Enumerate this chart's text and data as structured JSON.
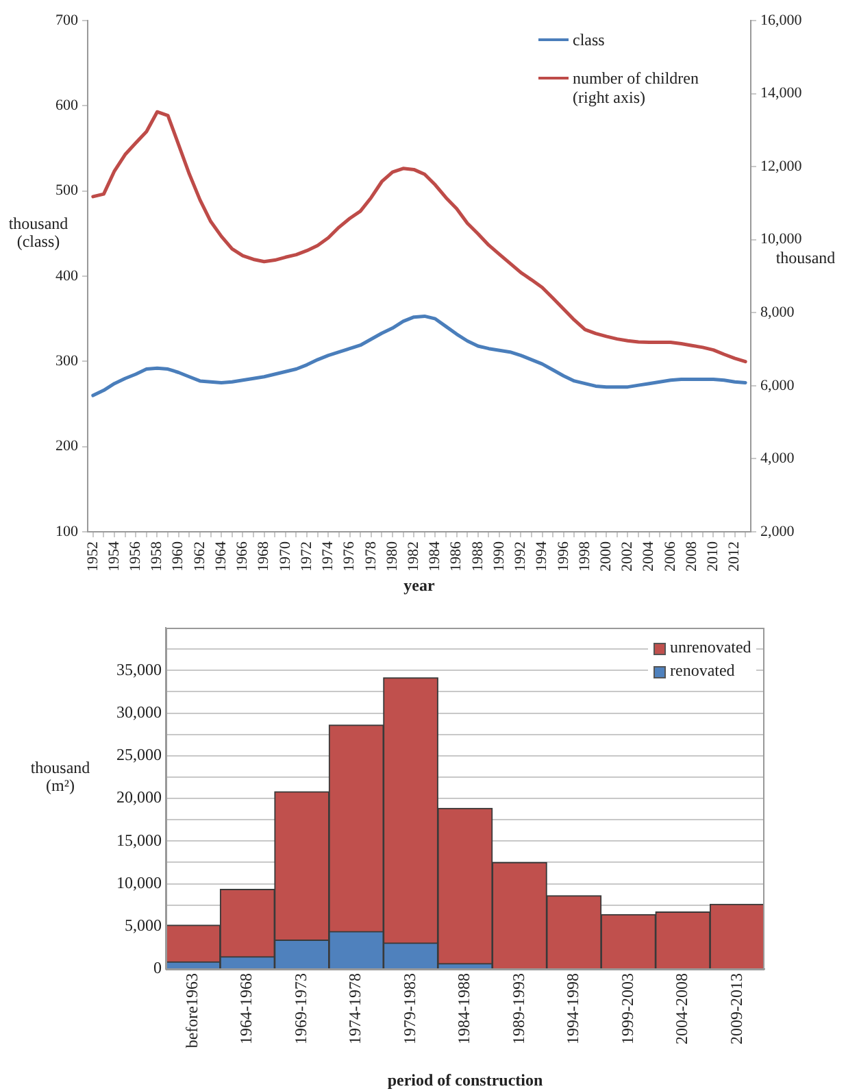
{
  "chart_data": [
    {
      "type": "line",
      "xlabel": "year",
      "ylabel": "thousand (class)",
      "y2label": "thousand",
      "categories": [
        "1952",
        null,
        "1954",
        null,
        "1956",
        null,
        "1958",
        null,
        "1960",
        null,
        "1962",
        null,
        "1964",
        null,
        "1966",
        null,
        "1968",
        null,
        "1970",
        null,
        "1972",
        null,
        "1974",
        null,
        "1976",
        null,
        "1978",
        null,
        "1980",
        null,
        "1982",
        null,
        "1984",
        null,
        "1986",
        null,
        "1988",
        null,
        "1990",
        null,
        "1992",
        null,
        "1994",
        null,
        "1996",
        null,
        "1998",
        null,
        "2000",
        null,
        "2002",
        null,
        "2004",
        null,
        "2006",
        null,
        "2008",
        null,
        "2010",
        null,
        "2012",
        null
      ],
      "series": [
        {
          "name": "class",
          "color": "#4a7ebb",
          "axis": "y",
          "values": [
            260,
            266,
            274,
            280,
            285,
            291,
            292,
            291,
            287,
            282,
            277,
            276,
            275,
            276,
            278,
            280,
            282,
            285,
            288,
            291,
            296,
            302,
            307,
            311,
            315,
            319,
            326,
            333,
            339,
            347,
            352,
            353,
            350,
            341,
            332,
            324,
            318,
            315,
            313,
            311,
            307,
            302,
            297,
            290,
            283,
            277,
            274,
            271,
            270,
            270,
            270,
            272,
            274,
            276,
            278,
            279,
            279,
            279,
            279,
            278,
            276,
            275
          ]
        },
        {
          "name": "number of children (right axis)",
          "color": "#be4b48",
          "axis": "y2",
          "values": [
            11180,
            11250,
            11880,
            12330,
            12650,
            12960,
            13500,
            13400,
            12600,
            11800,
            11090,
            10500,
            10090,
            9750,
            9560,
            9460,
            9400,
            9440,
            9520,
            9590,
            9700,
            9840,
            10050,
            10340,
            10580,
            10780,
            11150,
            11590,
            11850,
            11950,
            11920,
            11790,
            11500,
            11150,
            10850,
            10450,
            10160,
            9850,
            9600,
            9350,
            9100,
            8900,
            8690,
            8400,
            8100,
            7800,
            7540,
            7430,
            7350,
            7280,
            7230,
            7200,
            7190,
            7190,
            7190,
            7150,
            7100,
            7050,
            6980,
            6860,
            6750,
            6660
          ]
        }
      ],
      "ylim": [
        100,
        700
      ],
      "yticks": [
        100,
        200,
        300,
        400,
        500,
        600,
        700
      ],
      "y2lim": [
        2000,
        16000
      ],
      "y2ticks": [
        {
          "value": 2000,
          "label": "2,000"
        },
        {
          "value": 4000,
          "label": "4,000"
        },
        {
          "value": 6000,
          "label": "6,000"
        },
        {
          "value": 8000,
          "label": "8,000"
        },
        {
          "value": 10000,
          "label": "10,000"
        },
        {
          "value": 12000,
          "label": "12,000"
        },
        {
          "value": 14000,
          "label": "14,000"
        },
        {
          "value": 16000,
          "label": "16,000"
        }
      ],
      "grid": false,
      "legend": "top right",
      "marker": "none",
      "line_style": "solid"
    },
    {
      "type": "bar",
      "stacked": true,
      "xlabel": "period of construction",
      "ylabel": "thousand (m²)",
      "categories": [
        "before1963",
        "1964-1968",
        "1969-1973",
        "1974-1978",
        "1979-1983",
        "1984-1988",
        "1989-1993",
        "1994-1998",
        "1999-2003",
        "2004-2008",
        "2009-2013"
      ],
      "series": [
        {
          "name": "renovated",
          "color": "#4f81bd",
          "values": [
            850,
            1450,
            3400,
            4400,
            3050,
            650,
            0,
            0,
            0,
            0,
            0
          ]
        },
        {
          "name": "unrenovated",
          "color": "#c0504d",
          "values": [
            4300,
            7900,
            17400,
            24200,
            31100,
            18200,
            12500,
            8600,
            6400,
            6700,
            7600
          ]
        }
      ],
      "ylim": [
        0,
        40000
      ],
      "yticks": [
        0,
        {
          "value": 5000,
          "label": "5,000"
        },
        {
          "value": 7500,
          "label": null
        },
        {
          "value": 10000,
          "label": "10,000"
        },
        {
          "value": 12500,
          "label": null
        },
        {
          "value": 15000,
          "label": "15,000"
        },
        {
          "value": 17500,
          "label": null
        },
        {
          "value": 20000,
          "label": "20,000"
        },
        {
          "value": 22500,
          "label": null
        },
        {
          "value": 25000,
          "label": "25,000"
        },
        {
          "value": 27500,
          "label": null
        },
        {
          "value": 30000,
          "label": "30,000"
        },
        {
          "value": 32500,
          "label": null
        },
        {
          "value": 35000,
          "label": "35,000"
        },
        {
          "value": 37500,
          "label": null
        }
      ],
      "grid": "y",
      "legend": "top right"
    }
  ]
}
